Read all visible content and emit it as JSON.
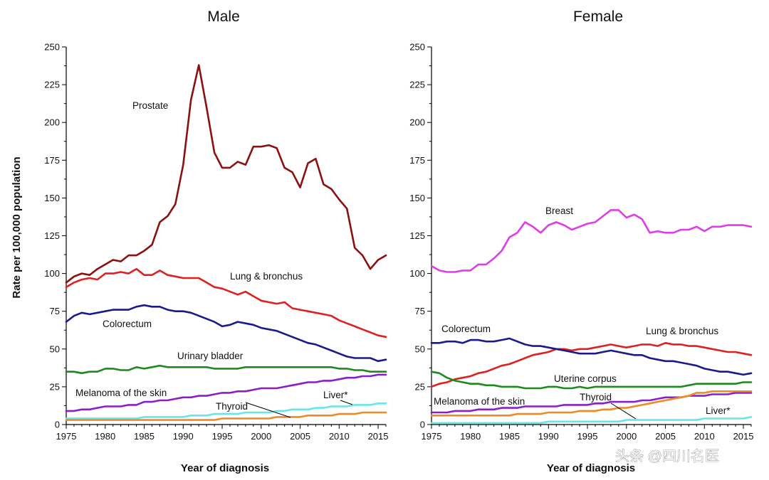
{
  "watermark": "头条 @四川名医",
  "chart_data": [
    {
      "type": "line",
      "title": "Male",
      "xlabel": "Year of diagnosis",
      "ylabel": "Rate per 100,000 population",
      "xlim": [
        1975,
        2016
      ],
      "ylim": [
        0,
        250
      ],
      "x_ticks": [
        1975,
        1980,
        1985,
        1990,
        1995,
        2000,
        2005,
        2010,
        2015
      ],
      "y_ticks": [
        0,
        25,
        50,
        75,
        100,
        125,
        150,
        175,
        200,
        225,
        250
      ],
      "x": [
        1975,
        1976,
        1977,
        1978,
        1979,
        1980,
        1981,
        1982,
        1983,
        1984,
        1985,
        1986,
        1987,
        1988,
        1989,
        1990,
        1991,
        1992,
        1993,
        1994,
        1995,
        1996,
        1997,
        1998,
        1999,
        2000,
        2001,
        2002,
        2003,
        2004,
        2005,
        2006,
        2007,
        2008,
        2009,
        2010,
        2011,
        2012,
        2013,
        2014,
        2015,
        2016
      ],
      "series": [
        {
          "name": "Prostate",
          "color": "#8b1010",
          "values": [
            94,
            98,
            100,
            99,
            103,
            106,
            109,
            108,
            112,
            112,
            115,
            119,
            134,
            138,
            146,
            172,
            215,
            238,
            210,
            180,
            170,
            170,
            174,
            172,
            184,
            184,
            185,
            183,
            170,
            167,
            157,
            173,
            176,
            159,
            156,
            149,
            143,
            117,
            112,
            103,
            109,
            112
          ]
        },
        {
          "name": "Lung & bronchus",
          "color": "#e02020",
          "values": [
            91,
            94,
            96,
            97,
            96,
            100,
            100,
            101,
            100,
            103,
            99,
            99,
            102,
            99,
            98,
            97,
            97,
            97,
            94,
            91,
            90,
            88,
            86,
            88,
            85,
            82,
            81,
            80,
            81,
            77,
            76,
            75,
            74,
            73,
            72,
            69,
            67,
            65,
            63,
            61,
            59,
            58
          ]
        },
        {
          "name": "Colorectum",
          "color": "#1a1a8c",
          "values": [
            68,
            72,
            74,
            73,
            74,
            75,
            76,
            76,
            76,
            78,
            79,
            78,
            78,
            76,
            75,
            75,
            74,
            72,
            70,
            68,
            65,
            66,
            68,
            67,
            66,
            64,
            63,
            62,
            60,
            58,
            56,
            54,
            53,
            51,
            49,
            47,
            45,
            44,
            44,
            44,
            42,
            43
          ]
        },
        {
          "name": "Urinary bladder",
          "color": "#1e8a1e",
          "values": [
            35,
            35,
            34,
            35,
            35,
            37,
            37,
            36,
            36,
            38,
            37,
            38,
            39,
            38,
            38,
            38,
            38,
            38,
            38,
            37,
            37,
            37,
            37,
            38,
            38,
            38,
            38,
            38,
            38,
            38,
            38,
            38,
            38,
            38,
            38,
            37,
            37,
            36,
            36,
            35,
            35,
            35
          ]
        },
        {
          "name": "Melanoma of the skin",
          "color": "#8a1ec8",
          "values": [
            9,
            9,
            10,
            10,
            11,
            12,
            12,
            12,
            13,
            13,
            15,
            15,
            16,
            16,
            17,
            18,
            18,
            19,
            19,
            20,
            21,
            21,
            22,
            22,
            23,
            24,
            24,
            24,
            25,
            26,
            27,
            28,
            28,
            29,
            29,
            30,
            31,
            31,
            32,
            32,
            33,
            33
          ]
        },
        {
          "name": "Liver*",
          "color": "#66e6ea",
          "values": [
            4,
            4,
            4,
            4,
            4,
            4,
            4,
            4,
            4,
            4,
            5,
            5,
            5,
            5,
            5,
            5,
            6,
            6,
            6,
            7,
            7,
            7,
            7,
            8,
            8,
            8,
            8,
            9,
            9,
            10,
            10,
            10,
            11,
            11,
            12,
            12,
            12,
            13,
            13,
            13,
            14,
            14
          ]
        },
        {
          "name": "Thyroid",
          "color": "#f08a24",
          "values": [
            3,
            3,
            3,
            3,
            3,
            3,
            3,
            3,
            3,
            3,
            3,
            3,
            3,
            3,
            3,
            3,
            3,
            3,
            3,
            3,
            4,
            4,
            4,
            4,
            4,
            4,
            4,
            5,
            5,
            5,
            5,
            6,
            6,
            6,
            6,
            7,
            7,
            7,
            8,
            8,
            8,
            8
          ]
        }
      ],
      "labels": [
        "Prostate",
        "Lung & bronchus",
        "Colorectum",
        "Urinary bladder",
        "Melanoma of the skin",
        "Liver*",
        "Thyroid"
      ]
    },
    {
      "type": "line",
      "title": "Female",
      "xlabel": "Year of diagnosis",
      "ylabel": "",
      "xlim": [
        1975,
        2016
      ],
      "ylim": [
        0,
        250
      ],
      "x_ticks": [
        1975,
        1980,
        1985,
        1990,
        1995,
        2000,
        2005,
        2010,
        2015
      ],
      "y_ticks": [
        0,
        25,
        50,
        75,
        100,
        125,
        150,
        175,
        200,
        225,
        250
      ],
      "x": [
        1975,
        1976,
        1977,
        1978,
        1979,
        1980,
        1981,
        1982,
        1983,
        1984,
        1985,
        1986,
        1987,
        1988,
        1989,
        1990,
        1991,
        1992,
        1993,
        1994,
        1995,
        1996,
        1997,
        1998,
        1999,
        2000,
        2001,
        2002,
        2003,
        2004,
        2005,
        2006,
        2007,
        2008,
        2009,
        2010,
        2011,
        2012,
        2013,
        2014,
        2015,
        2016
      ],
      "series": [
        {
          "name": "Breast",
          "color": "#e03ce8",
          "values": [
            105,
            102,
            101,
            101,
            102,
            102,
            106,
            106,
            110,
            115,
            124,
            127,
            134,
            131,
            127,
            132,
            134,
            132,
            129,
            131,
            133,
            134,
            138,
            142,
            142,
            137,
            139,
            136,
            127,
            128,
            127,
            127,
            129,
            129,
            131,
            128,
            131,
            131,
            132,
            132,
            132,
            131
          ]
        },
        {
          "name": "Lung & bronchus",
          "color": "#e02020",
          "values": [
            25,
            27,
            28,
            30,
            31,
            32,
            34,
            35,
            37,
            39,
            40,
            42,
            44,
            46,
            47,
            48,
            50,
            50,
            49,
            50,
            50,
            51,
            52,
            53,
            52,
            51,
            52,
            53,
            53,
            52,
            54,
            53,
            53,
            52,
            52,
            51,
            50,
            49,
            48,
            48,
            47,
            46
          ]
        },
        {
          "name": "Colorectum",
          "color": "#1a1a8c",
          "values": [
            54,
            54,
            55,
            55,
            54,
            56,
            56,
            55,
            55,
            56,
            57,
            55,
            53,
            52,
            52,
            51,
            50,
            49,
            48,
            47,
            47,
            47,
            48,
            49,
            48,
            47,
            46,
            46,
            44,
            43,
            42,
            42,
            41,
            40,
            39,
            37,
            36,
            35,
            35,
            34,
            33,
            34
          ]
        },
        {
          "name": "Uterine corpus",
          "color": "#1e8a1e",
          "values": [
            35,
            34,
            31,
            29,
            28,
            27,
            27,
            26,
            26,
            25,
            25,
            25,
            24,
            24,
            24,
            25,
            25,
            24,
            24,
            25,
            24,
            25,
            25,
            25,
            25,
            25,
            25,
            25,
            25,
            25,
            25,
            25,
            25,
            26,
            27,
            27,
            27,
            27,
            27,
            27,
            28,
            28
          ]
        },
        {
          "name": "Melanoma of the skin",
          "color": "#8a1ec8",
          "values": [
            8,
            8,
            8,
            9,
            9,
            9,
            10,
            10,
            10,
            11,
            11,
            11,
            12,
            12,
            12,
            12,
            12,
            13,
            13,
            13,
            13,
            14,
            14,
            15,
            15,
            15,
            15,
            16,
            16,
            17,
            18,
            18,
            18,
            19,
            19,
            19,
            20,
            20,
            20,
            21,
            21,
            21
          ]
        },
        {
          "name": "Thyroid",
          "color": "#f08a24",
          "values": [
            6,
            6,
            6,
            6,
            6,
            6,
            6,
            6,
            6,
            6,
            6,
            7,
            7,
            7,
            7,
            8,
            8,
            8,
            8,
            9,
            9,
            9,
            10,
            10,
            11,
            11,
            12,
            13,
            14,
            15,
            16,
            17,
            18,
            19,
            21,
            21,
            22,
            22,
            22,
            22,
            22,
            22
          ]
        },
        {
          "name": "Liver*",
          "color": "#66e6ea",
          "values": [
            1,
            1,
            1,
            1,
            1,
            1,
            1,
            1,
            1,
            1,
            1,
            1,
            1,
            1,
            1,
            2,
            2,
            2,
            2,
            2,
            2,
            2,
            2,
            2,
            2,
            3,
            3,
            3,
            3,
            3,
            3,
            3,
            3,
            3,
            3,
            4,
            4,
            4,
            4,
            4,
            4,
            5
          ]
        }
      ],
      "labels": [
        "Breast",
        "Colorectum",
        "Lung & bronchus",
        "Uterine corpus",
        "Melanoma of the skin",
        "Thyroid",
        "Liver*"
      ]
    }
  ]
}
